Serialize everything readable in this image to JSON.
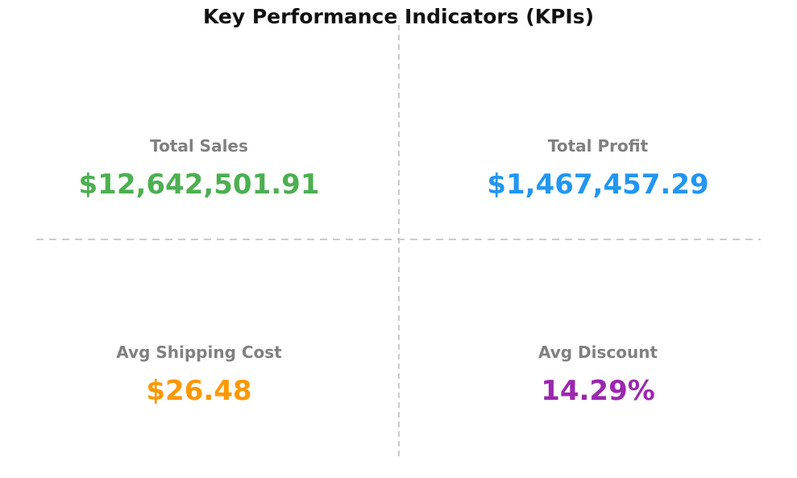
{
  "title": "Key Performance Indicators (KPIs)",
  "colors": {
    "title": "#111111",
    "label_gray": "#808080",
    "divider_gray": "#cccccc",
    "total_sales": "#4CAF50",
    "total_profit": "#2196F3",
    "avg_shipping_cost": "#FF9800",
    "avg_discount": "#9C27B0",
    "background": "#ffffff"
  },
  "kpis": [
    {
      "label": "Total Sales",
      "value": "$12,642,501.91",
      "color": "#4CAF50"
    },
    {
      "label": "Total Profit",
      "value": "$1,467,457.29",
      "color": "#2196F3"
    },
    {
      "label": "Avg Shipping Cost",
      "value": "$26.48",
      "color": "#FF9800"
    },
    {
      "label": "Avg Discount",
      "value": "14.29%",
      "color": "#9C27B0"
    }
  ],
  "chart_data": {
    "type": "table",
    "title": "Key Performance Indicators (KPIs)",
    "categories": [
      "Total Sales",
      "Total Profit",
      "Avg Shipping Cost",
      "Avg Discount"
    ],
    "values": [
      12642501.91,
      1467457.29,
      26.48,
      14.29
    ],
    "value_labels": [
      "$12,642,501.91",
      "$1,467,457.29",
      "$26.48",
      "14.29%"
    ],
    "units": [
      "USD",
      "USD",
      "USD",
      "percent"
    ],
    "layout": "2x2 grid of KPI text cards separated by light gray dashed crosshair divider lines, title centered at top"
  }
}
